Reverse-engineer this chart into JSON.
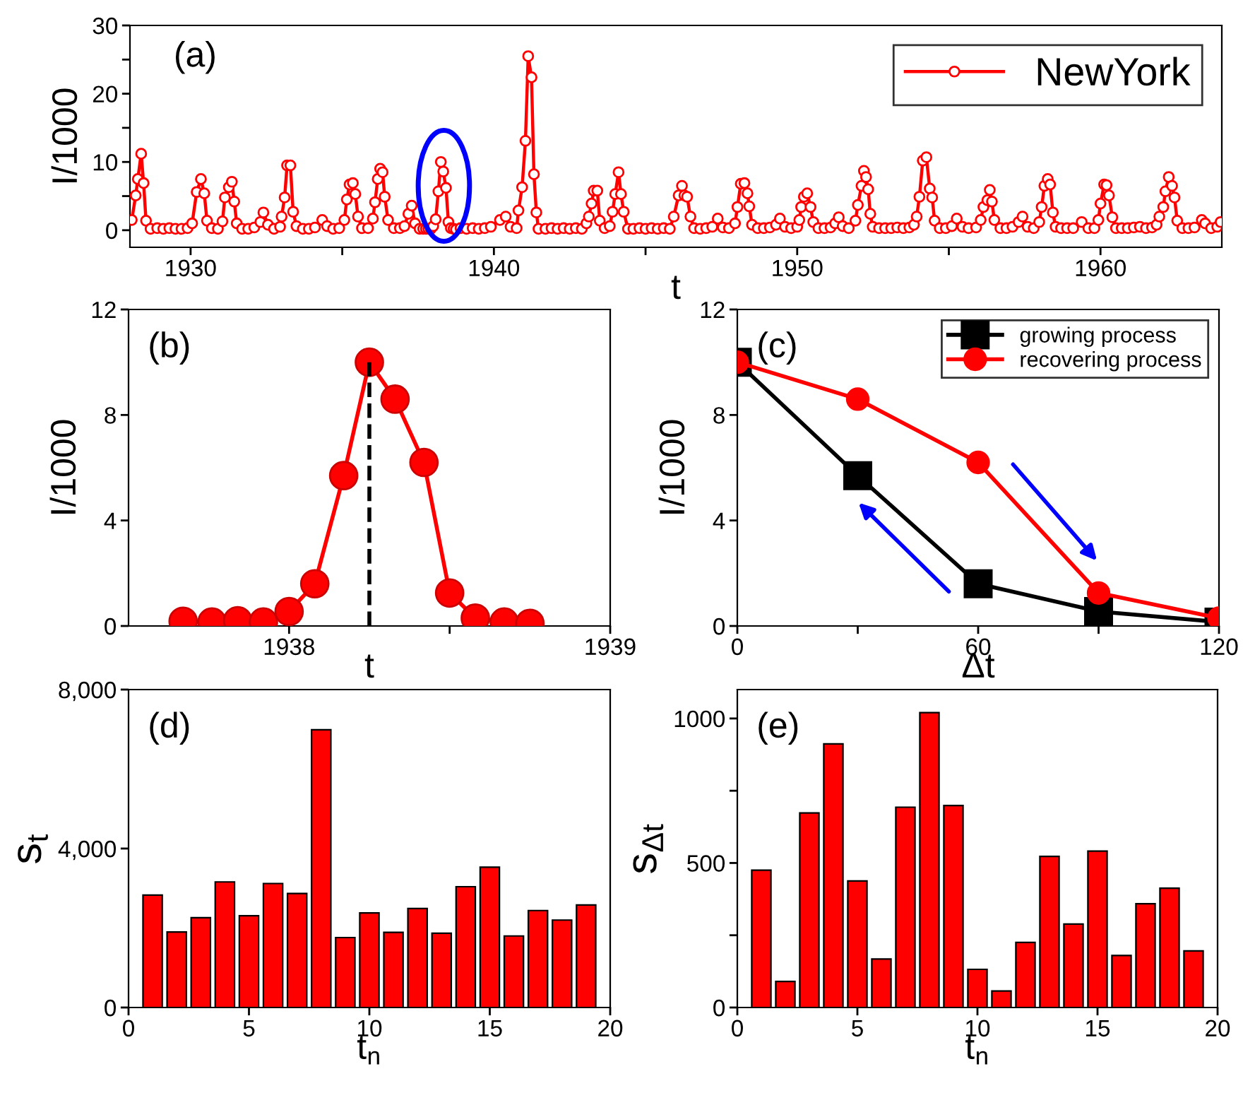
{
  "chart_data": [
    {
      "type": "line",
      "xlabel": "t",
      "ylabel": "I/1000",
      "annotations": [
        "(a)"
      ],
      "xlim": [
        1928,
        1964
      ],
      "ylim": [
        -2.5,
        30
      ],
      "xticks": [
        1930,
        {
          "value": 1935,
          "label": null
        },
        1940,
        {
          "value": 1945,
          "label": null
        },
        1950,
        {
          "value": 1955,
          "label": null
        },
        1960
      ],
      "yticks": [
        0,
        {
          "value": 5,
          "label": null
        },
        10,
        {
          "value": 15,
          "label": null
        },
        20,
        {
          "value": 25,
          "label": null
        },
        30
      ],
      "legend": "top right",
      "marker": "circle",
      "line_style": "solid",
      "series": [
        {
          "name": "NewYork",
          "color": "#ff0000",
          "x": [
            1928.06,
            1928.19,
            1928.26,
            1928.37,
            1928.45,
            1928.53,
            1928.68,
            1928.9,
            1929.1,
            1929.3,
            1929.5,
            1929.7,
            1929.9,
            1930.05,
            1930.2,
            1930.34,
            1930.45,
            1930.54,
            1930.7,
            1930.9,
            1931.05,
            1931.13,
            1931.26,
            1931.36,
            1931.44,
            1931.52,
            1931.7,
            1931.9,
            1932.1,
            1932.3,
            1932.4,
            1932.55,
            1932.75,
            1932.95,
            1933.0,
            1933.1,
            1933.18,
            1933.29,
            1933.38,
            1933.49,
            1933.7,
            1933.9,
            1934.1,
            1934.34,
            1934.5,
            1934.7,
            1934.9,
            1935.07,
            1935.15,
            1935.24,
            1935.35,
            1935.43,
            1935.52,
            1935.65,
            1935.85,
            1936.01,
            1936.08,
            1936.17,
            1936.25,
            1936.33,
            1936.4,
            1936.51,
            1936.7,
            1936.9,
            1937.05,
            1937.18,
            1937.29,
            1937.4,
            1937.55,
            1937.67,
            1937.76,
            1937.84,
            1937.92,
            1938.0,
            1938.08,
            1938.17,
            1938.25,
            1938.33,
            1938.42,
            1938.5,
            1938.58,
            1938.67,
            1938.75,
            1938.9,
            1939.1,
            1939.3,
            1939.5,
            1939.7,
            1939.9,
            1940.2,
            1940.39,
            1940.55,
            1940.75,
            1940.81,
            1940.93,
            1941.04,
            1941.13,
            1941.24,
            1941.32,
            1941.4,
            1941.47,
            1941.7,
            1941.9,
            1942.1,
            1942.3,
            1942.5,
            1942.7,
            1942.9,
            1943.05,
            1943.13,
            1943.22,
            1943.29,
            1943.41,
            1943.49,
            1943.65,
            1943.82,
            1943.91,
            1944.0,
            1944.11,
            1944.19,
            1944.28,
            1944.42,
            1944.6,
            1944.8,
            1945.0,
            1945.2,
            1945.4,
            1945.6,
            1945.8,
            1945.93,
            1946.09,
            1946.2,
            1946.28,
            1946.37,
            1946.48,
            1946.6,
            1946.8,
            1947.0,
            1947.2,
            1947.38,
            1947.55,
            1947.75,
            1947.95,
            1948.03,
            1948.14,
            1948.26,
            1948.36,
            1948.42,
            1948.51,
            1948.7,
            1948.9,
            1949.1,
            1949.3,
            1949.43,
            1949.6,
            1949.8,
            1950.0,
            1950.07,
            1950.13,
            1950.22,
            1950.33,
            1950.44,
            1950.53,
            1950.7,
            1950.9,
            1951.1,
            1951.25,
            1951.37,
            1951.5,
            1951.7,
            1951.92,
            1952.0,
            1952.12,
            1952.2,
            1952.27,
            1952.34,
            1952.41,
            1952.49,
            1952.7,
            1952.9,
            1953.1,
            1953.3,
            1953.5,
            1953.7,
            1953.85,
            1953.94,
            1954.03,
            1954.14,
            1954.26,
            1954.37,
            1954.45,
            1954.53,
            1954.7,
            1954.9,
            1955.1,
            1955.26,
            1955.45,
            1955.65,
            1955.9,
            1956.05,
            1956.14,
            1956.27,
            1956.35,
            1956.42,
            1956.5,
            1956.7,
            1956.9,
            1957.1,
            1957.3,
            1957.43,
            1957.6,
            1957.8,
            1957.98,
            1958.06,
            1958.15,
            1958.26,
            1958.34,
            1958.43,
            1958.52,
            1958.7,
            1958.9,
            1959.1,
            1959.38,
            1959.6,
            1959.8,
            1959.93,
            1960.0,
            1960.12,
            1960.2,
            1960.28,
            1960.39,
            1960.51,
            1960.7,
            1960.9,
            1961.1,
            1961.3,
            1961.5,
            1961.7,
            1961.85,
            1961.94,
            1962.07,
            1962.14,
            1962.25,
            1962.36,
            1962.44,
            1962.53,
            1962.7,
            1962.9,
            1963.1,
            1963.34,
            1963.45,
            1963.65,
            1963.85,
            1963.96
          ],
          "values": [
            1.5,
            5.1,
            7.5,
            11.2,
            6.9,
            1.4,
            0.2,
            0.3,
            0.2,
            0.3,
            0.2,
            0.2,
            0.3,
            1.0,
            5.6,
            7.5,
            5.4,
            1.4,
            0.3,
            0.2,
            1.3,
            4.8,
            6.3,
            7.1,
            4.2,
            1.0,
            0.2,
            0.2,
            0.4,
            1.2,
            2.6,
            0.8,
            0.2,
            0.5,
            2.0,
            4.8,
            9.5,
            9.5,
            2.7,
            0.6,
            0.2,
            0.2,
            0.4,
            1.5,
            0.6,
            0.2,
            0.3,
            1.5,
            4.5,
            6.7,
            6.9,
            5.3,
            2.0,
            0.3,
            0.3,
            1.7,
            4.1,
            7.5,
            9.0,
            8.5,
            4.9,
            1.5,
            0.3,
            0.3,
            0.6,
            2.4,
            3.6,
            1.0,
            0.2,
            0.2,
            0.2,
            0.2,
            0.2,
            0.6,
            1.6,
            5.7,
            10.0,
            8.6,
            6.2,
            1.2,
            0.3,
            0.2,
            0.1,
            0.3,
            0.2,
            0.3,
            0.2,
            0.3,
            0.5,
            1.5,
            2.0,
            0.5,
            0.3,
            2.9,
            6.3,
            13.1,
            25.5,
            22.4,
            8.2,
            2.6,
            0.2,
            0.2,
            0.3,
            0.2,
            0.3,
            0.2,
            0.3,
            0.2,
            1.0,
            2.0,
            3.9,
            5.8,
            5.8,
            1.4,
            0.3,
            0.6,
            2.7,
            5.3,
            8.5,
            5.3,
            2.7,
            0.2,
            0.2,
            0.3,
            0.2,
            0.3,
            0.2,
            0.3,
            0.2,
            2.0,
            5.1,
            6.5,
            5.1,
            4.9,
            2.0,
            0.3,
            0.2,
            0.3,
            0.5,
            1.7,
            0.4,
            0.3,
            1.0,
            3.4,
            6.8,
            6.9,
            5.4,
            3.5,
            0.8,
            0.3,
            0.3,
            0.4,
            0.8,
            1.7,
            0.5,
            0.3,
            0.5,
            1.5,
            3.4,
            4.9,
            5.4,
            3.4,
            1.2,
            0.3,
            0.3,
            0.4,
            1.0,
            1.9,
            0.6,
            0.3,
            1.4,
            3.7,
            6.5,
            8.7,
            7.8,
            6.0,
            2.4,
            0.5,
            0.3,
            0.3,
            0.3,
            0.4,
            0.3,
            0.4,
            0.8,
            2.0,
            4.9,
            10.2,
            10.7,
            6.1,
            4.8,
            1.4,
            0.3,
            0.3,
            0.6,
            1.7,
            0.5,
            0.3,
            0.4,
            1.5,
            3.4,
            4.4,
            5.9,
            4.2,
            1.5,
            0.3,
            0.3,
            0.5,
            1.2,
            2.0,
            0.5,
            0.3,
            1.2,
            3.4,
            6.5,
            7.5,
            6.7,
            2.6,
            0.5,
            0.3,
            0.3,
            0.3,
            1.2,
            0.3,
            0.3,
            1.5,
            3.9,
            6.7,
            6.6,
            5.1,
            1.9,
            0.3,
            0.3,
            0.3,
            0.4,
            0.5,
            0.3,
            0.4,
            0.8,
            2.0,
            3.4,
            5.7,
            7.8,
            6.5,
            4.8,
            1.4,
            0.3,
            0.3,
            0.4,
            1.5,
            1.0,
            0.3,
            0.5,
            1.2
          ]
        }
      ]
    },
    {
      "type": "line",
      "xlabel": "t",
      "ylabel": "I/1000",
      "annotations": [
        "(b)"
      ],
      "xlim": [
        1937.5,
        1939
      ],
      "ylim": [
        0,
        12
      ],
      "xticks": [
        1938,
        {
          "value": 1938.5,
          "label": null
        },
        1939
      ],
      "yticks": [
        0,
        4,
        8,
        12
      ],
      "marker": "circle",
      "line_style": "solid",
      "ref_lines": [
        {
          "axis": "x",
          "value": 1938.25,
          "color": "#000000",
          "line_style": "dashed"
        }
      ],
      "series": [
        {
          "color": "#ff0000",
          "x": [
            1937.67,
            1937.76,
            1937.84,
            1937.92,
            1938.0,
            1938.08,
            1938.17,
            1938.25,
            1938.33,
            1938.42,
            1938.5,
            1938.58,
            1938.67,
            1938.75
          ],
          "values": [
            0.18,
            0.15,
            0.2,
            0.15,
            0.55,
            1.6,
            5.7,
            10.0,
            8.6,
            6.2,
            1.25,
            0.3,
            0.15,
            0.1
          ]
        }
      ]
    },
    {
      "type": "line",
      "xlabel": "Δt",
      "ylabel": "I/1000",
      "annotations": [
        "(c)"
      ],
      "xlim": [
        0,
        120
      ],
      "ylim": [
        0,
        12
      ],
      "xticks": [
        0,
        {
          "value": 30,
          "label": null
        },
        60,
        {
          "value": 90,
          "label": null
        },
        120
      ],
      "yticks": [
        0,
        4,
        8,
        12
      ],
      "legend": "top right",
      "line_style": "solid",
      "x": [
        0,
        30,
        60,
        90,
        120
      ],
      "series": [
        {
          "name": "growing process",
          "color": "#000000",
          "marker": "square",
          "values": [
            10.0,
            5.7,
            1.6,
            0.55,
            0.15
          ]
        },
        {
          "name": "recovering process",
          "color": "#ff0000",
          "marker": "circle",
          "values": [
            10.0,
            8.6,
            6.2,
            1.25,
            0.3
          ]
        }
      ]
    },
    {
      "type": "bar",
      "xlabel": "t$_{n}$",
      "ylabel": "s$_{t}$",
      "annotations": [
        "(d)"
      ],
      "xlim": [
        0,
        20
      ],
      "ylim": [
        0,
        8000
      ],
      "xticks": [
        0,
        5,
        10,
        15,
        20
      ],
      "yticks": [
        0,
        {
          "value": 4000,
          "label": "4,000"
        },
        {
          "value": 8000,
          "label": "8,000"
        }
      ],
      "x": [
        1,
        2,
        3,
        4,
        5,
        6,
        7,
        8,
        9,
        10,
        11,
        12,
        13,
        14,
        15,
        16,
        17,
        18,
        19
      ],
      "series": [
        {
          "color": "#ff0000",
          "values": [
            2830,
            1900,
            2260,
            3160,
            2310,
            3120,
            2870,
            6990,
            1760,
            2380,
            1890,
            2490,
            1870,
            3040,
            3530,
            1800,
            2440,
            2200,
            2580
          ]
        }
      ]
    },
    {
      "type": "bar",
      "xlabel": "t$_{n}$",
      "ylabel": "s$_{Δt}$",
      "annotations": [
        "(e)"
      ],
      "xlim": [
        0,
        20
      ],
      "ylim": [
        0,
        1100
      ],
      "xticks": [
        0,
        5,
        10,
        15,
        20
      ],
      "yticks": [
        0,
        {
          "value": 250,
          "label": null
        },
        500,
        {
          "value": 750,
          "label": null
        },
        1000
      ],
      "x": [
        1,
        2,
        3,
        4,
        5,
        6,
        7,
        8,
        9,
        10,
        11,
        12,
        13,
        14,
        15,
        16,
        17,
        18,
        19
      ],
      "series": [
        {
          "color": "#ff0000",
          "values": [
            475,
            90,
            673,
            912,
            438,
            168,
            693,
            1020,
            699,
            132,
            57,
            225,
            523,
            289,
            541,
            180,
            359,
            413,
            196
          ]
        }
      ]
    }
  ]
}
